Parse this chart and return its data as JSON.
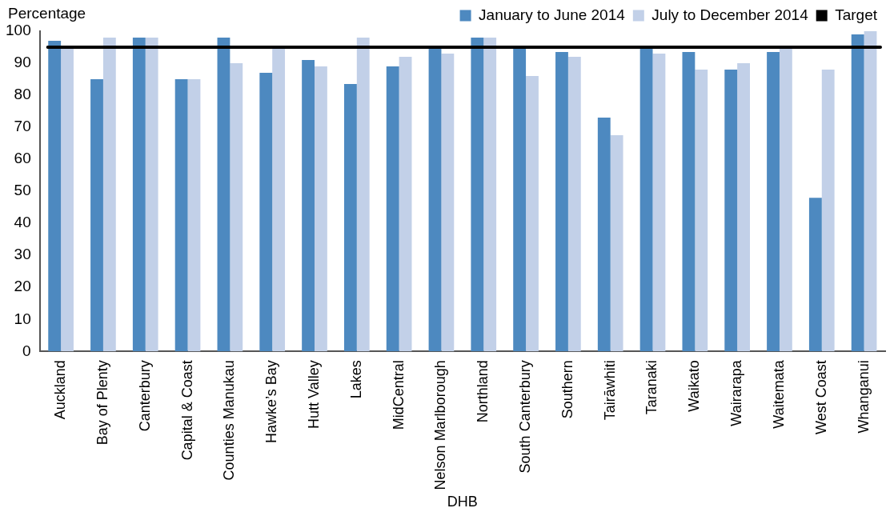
{
  "chart_data": {
    "type": "bar",
    "xlabel": "DHB",
    "ylabel": "Percentage",
    "categories": [
      "Auckland",
      "Bay of Plenty",
      "Canterbury",
      "Capital & Coast",
      "Counties Manukau",
      "Hawke’s Bay",
      "Hutt Valley",
      "Lakes",
      "MidCentral",
      "Nelson Marlborough",
      "Northland",
      "South Canterbury",
      "Southern",
      "Tairāwhiti",
      "Taranaki",
      "Waikato",
      "Wairarapa",
      "Waitemata",
      "West Coast",
      "Whanganui"
    ],
    "series": [
      {
        "name": "January to June 2014",
        "color": "#4d89c0",
        "values": [
          97,
          85,
          98,
          85,
          98,
          87,
          91,
          83.5,
          89,
          95,
          98,
          95,
          93.5,
          73,
          95,
          93.5,
          88,
          93.5,
          48,
          99
        ]
      },
      {
        "name": "July to December 2014",
        "color": "#c2d0e8",
        "values": [
          95,
          98,
          98,
          85,
          90,
          95,
          89,
          98,
          92,
          93,
          98,
          86,
          92,
          67.5,
          93,
          88,
          90,
          95,
          88,
          100
        ]
      }
    ],
    "ylim": [
      0,
      100
    ],
    "yticks": [
      0,
      10,
      20,
      30,
      40,
      50,
      60,
      70,
      80,
      90,
      100
    ],
    "grid": false,
    "legend": "top right",
    "ref_lines": [
      {
        "axis": "y",
        "value": 95,
        "label": "Target",
        "color": "#000000",
        "line_style": "solid"
      }
    ]
  }
}
